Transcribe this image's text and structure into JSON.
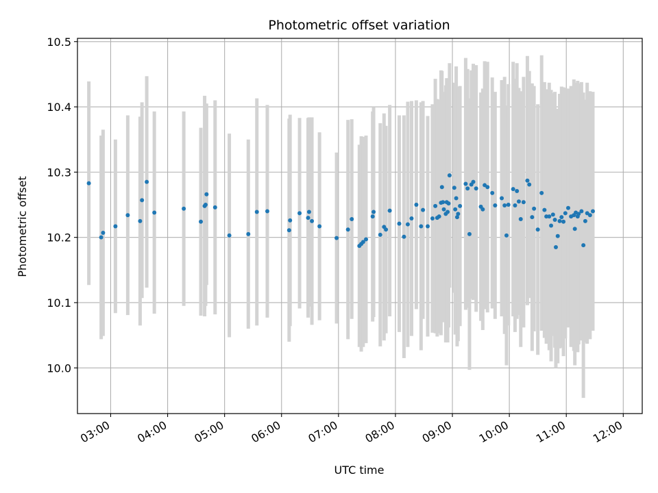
{
  "chart_data": {
    "type": "scatter",
    "title": "Photometric offset variation",
    "xlabel": "UTC time",
    "ylabel": "Photometric offset",
    "xlim": [
      "02:25",
      "12:20"
    ],
    "ylim": [
      9.93,
      10.505
    ],
    "x_ticks": [
      "03:00",
      "04:00",
      "05:00",
      "06:00",
      "07:00",
      "08:00",
      "09:00",
      "10:00",
      "11:00",
      "12:00"
    ],
    "y_ticks": [
      "10.0",
      "10.1",
      "10.2",
      "10.3",
      "10.4",
      "10.5"
    ],
    "grid": true,
    "legend": "none",
    "colors": {
      "points": "#1f77b4",
      "errorbars": "#d3d3d3",
      "grid": "#b0b0b0"
    },
    "series": [
      {
        "x": [
          "02:37",
          "02:50",
          "02:52",
          "03:05",
          "03:18",
          "03:31",
          "03:33",
          "03:38",
          "03:46",
          "04:17",
          "04:35",
          "04:39",
          "04:40",
          "04:41",
          "04:50",
          "05:05",
          "05:25",
          "05:34",
          "05:45",
          "06:08",
          "06:09",
          "06:19",
          "06:28",
          "06:29",
          "06:32",
          "06:40",
          "06:58",
          "07:10",
          "07:14",
          "07:22",
          "07:24",
          "07:26",
          "07:29",
          "07:36",
          "07:37",
          "07:44",
          "07:48",
          "07:50",
          "07:54",
          "08:04",
          "08:09",
          "08:13",
          "08:17",
          "08:22",
          "08:27",
          "08:29",
          "08:34",
          "08:39",
          "08:42",
          "08:44",
          "08:46",
          "08:48",
          "08:49",
          "08:50",
          "08:51",
          "08:53",
          "08:54",
          "08:55",
          "08:56",
          "08:57",
          "09:02",
          "09:03",
          "09:04",
          "09:05",
          "09:06",
          "09:08",
          "09:14",
          "09:16",
          "09:18",
          "09:20",
          "09:22",
          "09:25",
          "09:30",
          "09:32",
          "09:34",
          "09:37",
          "09:42",
          "09:45",
          "09:52",
          "09:55",
          "09:57",
          "09:59",
          "10:04",
          "10:06",
          "10:08",
          "10:10",
          "10:12",
          "10:15",
          "10:19",
          "10:21",
          "10:24",
          "10:26",
          "10:30",
          "10:34",
          "10:37",
          "10:39",
          "10:42",
          "10:44",
          "10:46",
          "10:48",
          "10:49",
          "10:51",
          "10:53",
          "10:55",
          "10:57",
          "10:59",
          "11:02",
          "11:05",
          "11:08",
          "11:09",
          "11:10",
          "11:12",
          "11:13",
          "11:16",
          "11:18",
          "11:20",
          "11:22",
          "11:25",
          "11:28"
        ],
        "y": [
          10.283,
          10.2,
          10.207,
          10.217,
          10.234,
          10.225,
          10.257,
          10.285,
          10.238,
          10.244,
          10.224,
          10.248,
          10.25,
          10.266,
          10.246,
          10.203,
          10.205,
          10.239,
          10.24,
          10.211,
          10.226,
          10.237,
          10.23,
          10.239,
          10.225,
          10.217,
          10.199,
          10.212,
          10.228,
          10.187,
          10.19,
          10.193,
          10.197,
          10.232,
          10.239,
          10.204,
          10.216,
          10.212,
          10.241,
          10.221,
          10.201,
          10.22,
          10.229,
          10.25,
          10.217,
          10.242,
          10.217,
          10.229,
          10.248,
          10.23,
          10.232,
          10.253,
          10.277,
          10.254,
          10.243,
          10.236,
          10.254,
          10.239,
          10.252,
          10.295,
          10.276,
          10.243,
          10.26,
          10.231,
          10.236,
          10.248,
          10.282,
          10.275,
          10.205,
          10.281,
          10.285,
          10.275,
          10.247,
          10.243,
          10.28,
          10.277,
          10.268,
          10.249,
          10.26,
          10.249,
          10.203,
          10.25,
          10.274,
          10.249,
          10.271,
          10.255,
          10.228,
          10.254,
          10.287,
          10.281,
          10.231,
          10.244,
          10.212,
          10.268,
          10.242,
          10.232,
          10.232,
          10.218,
          10.235,
          10.227,
          10.185,
          10.202,
          10.225,
          10.231,
          10.224,
          10.237,
          10.245,
          10.232,
          10.234,
          10.213,
          10.238,
          10.232,
          10.236,
          10.24,
          10.188,
          10.225,
          10.237,
          10.234,
          10.24
        ],
        "yerr": [
          0.156,
          0.156,
          0.158,
          0.133,
          0.153,
          0.16,
          0.15,
          0.162,
          0.155,
          0.149,
          0.144,
          0.169,
          0.155,
          0.139,
          0.164,
          0.156,
          0.145,
          0.174,
          0.163,
          0.171,
          0.162,
          0.146,
          0.153,
          0.145,
          0.159,
          0.144,
          0.131,
          0.168,
          0.153,
          0.155,
          0.165,
          0.161,
          0.159,
          0.161,
          0.161,
          0.171,
          0.174,
          0.159,
          0.162,
          0.166,
          0.186,
          0.188,
          0.18,
          0.16,
          0.19,
          0.167,
          0.169,
          0.175,
          0.195,
          0.182,
          0.179,
          0.203,
          0.178,
          0.169,
          0.173,
          0.197,
          0.19,
          0.2,
          0.19,
          0.172,
          0.161,
          0.192,
          0.202,
          0.198,
          0.195,
          0.184,
          0.193,
          0.183,
          0.208,
          0.175,
          0.181,
          0.189,
          0.175,
          0.185,
          0.19,
          0.192,
          0.177,
          0.174,
          0.181,
          0.197,
          0.199,
          0.185,
          0.195,
          0.194,
          0.196,
          0.174,
          0.196,
          0.192,
          0.191,
          0.174,
          0.205,
          0.188,
          0.192,
          0.211,
          0.196,
          0.195,
          0.205,
          0.208,
          0.186,
          0.196,
          0.185,
          0.195,
          0.195,
          0.2,
          0.206,
          0.192,
          0.183,
          0.2,
          0.208,
          0.209,
          0.199,
          0.208,
          0.2,
          0.198,
          0.234,
          0.186,
          0.2,
          0.19,
          0.183
        ]
      }
    ]
  }
}
